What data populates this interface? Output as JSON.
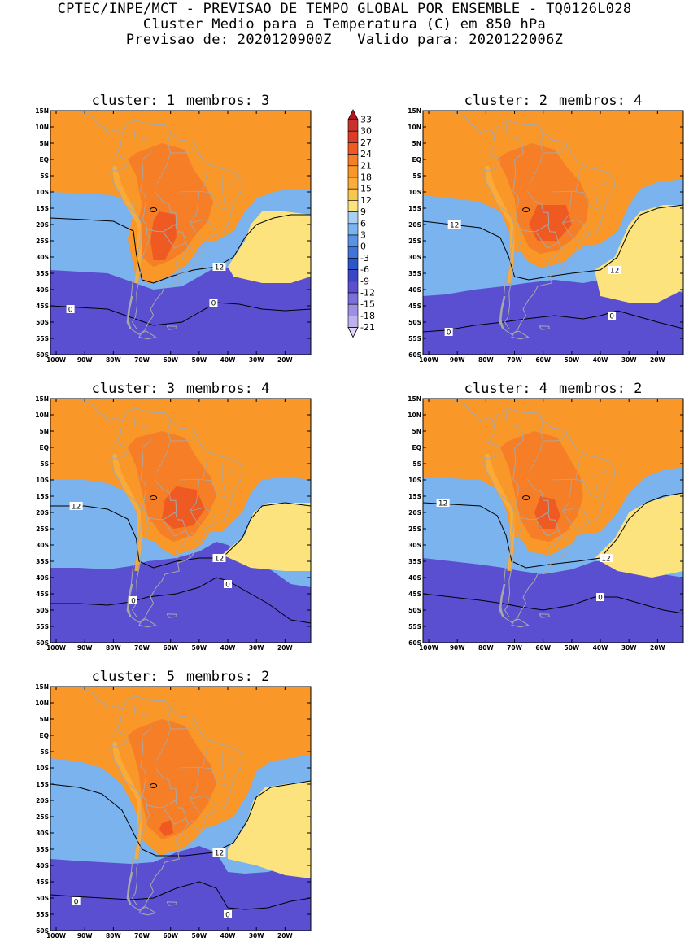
{
  "header": {
    "line1": "CPTEC/INPE/MCT - PREVISAO DE TEMPO GLOBAL POR ENSEMBLE - TQ0126L028",
    "line2": "Cluster Medio para a Temperatura (C) em 850 hPa",
    "line3_left": "Previsao de: 2020120900Z",
    "line3_right": "Valido para: 2020122006Z"
  },
  "panels": [
    {
      "cluster_label": "cluster: 1",
      "members_label": "membros: 3",
      "variant": 0,
      "contour_labels": [
        {
          "text": "12",
          "lon": -43,
          "lat": -33
        },
        {
          "text": "0",
          "lon": -95,
          "lat": -46
        },
        {
          "text": "0",
          "lon": -45,
          "lat": -44
        }
      ]
    },
    {
      "cluster_label": "cluster: 2",
      "members_label": "membros: 4",
      "variant": 1,
      "contour_labels": [
        {
          "text": "12",
          "lon": -91,
          "lat": -20
        },
        {
          "text": "12",
          "lon": -35,
          "lat": -34
        },
        {
          "text": "0",
          "lon": -36,
          "lat": -48
        },
        {
          "text": "0",
          "lon": -93,
          "lat": -53
        }
      ]
    },
    {
      "cluster_label": "cluster: 3",
      "members_label": "membros: 4",
      "variant": 2,
      "contour_labels": [
        {
          "text": "12",
          "lon": -93,
          "lat": -18
        },
        {
          "text": "12",
          "lon": -43,
          "lat": -34
        },
        {
          "text": "0",
          "lon": -40,
          "lat": -42
        },
        {
          "text": "0",
          "lon": -73,
          "lat": -47
        }
      ]
    },
    {
      "cluster_label": "cluster: 4",
      "members_label": "membros: 2",
      "variant": 3,
      "contour_labels": [
        {
          "text": "12",
          "lon": -95,
          "lat": -17
        },
        {
          "text": "12",
          "lon": -38,
          "lat": -34
        },
        {
          "text": "0",
          "lon": -40,
          "lat": -46
        }
      ]
    },
    {
      "cluster_label": "cluster: 5",
      "members_label": "membros: 2",
      "variant": 4,
      "contour_labels": [
        {
          "text": "12",
          "lon": -43,
          "lat": -36
        },
        {
          "text": "0",
          "lon": -93,
          "lat": -51
        },
        {
          "text": "0",
          "lon": -40,
          "lat": -55
        }
      ]
    }
  ],
  "axes": {
    "lat_ticks": [
      "15N",
      "10N",
      "5N",
      "EQ",
      "5S",
      "10S",
      "15S",
      "20S",
      "25S",
      "30S",
      "35S",
      "40S",
      "45S",
      "50S",
      "55S",
      "60S"
    ],
    "lon_ticks": [
      "100W",
      "90W",
      "80W",
      "70W",
      "60W",
      "50W",
      "40W",
      "30W",
      "20W"
    ]
  },
  "colorbar": {
    "labels": [
      "33",
      "30",
      "27",
      "24",
      "21",
      "18",
      "15",
      "12",
      "9",
      "6",
      "3",
      "0",
      "-3",
      "-6",
      "-9",
      "-12",
      "-15",
      "-18",
      "-21"
    ],
    "colors": [
      "#b4141e",
      "#c8322d",
      "#dc3c28",
      "#ee5a21",
      "#f57e26",
      "#f99728",
      "#fbac3a",
      "#f8c84a",
      "#fce37e",
      "#a9cff6",
      "#7ab3ee",
      "#5794e6",
      "#3e74dc",
      "#2c56cc",
      "#3a45c8",
      "#5a4fd0",
      "#7a6fdc",
      "#9c8fe5",
      "#bdb2ee",
      "#ddd4f6"
    ]
  }
}
